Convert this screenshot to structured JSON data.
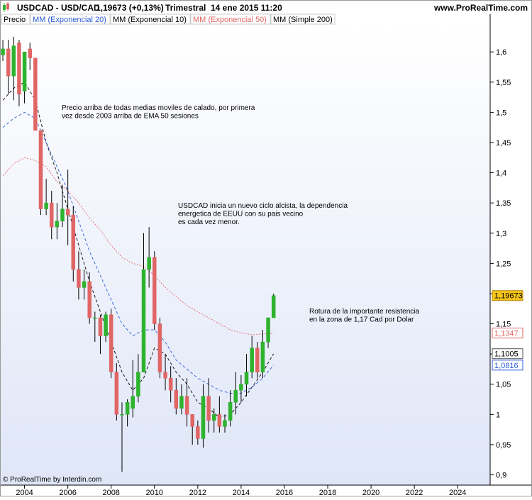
{
  "header": {
    "symbol": "USDCAD - USD/CAD",
    "quote": "1,19673 (+0,13%)",
    "period": "Trimestral",
    "datetime": "14 ene 2015 11:20",
    "site": "www.ProRealTime.com"
  },
  "legend": [
    {
      "label": "Precio",
      "color": "#000000"
    },
    {
      "label": "MM (Exponencial 20)",
      "color": "#2a5bd7"
    },
    {
      "label": "MM (Exponencial 10)",
      "color": "#000000"
    },
    {
      "label": "MM (Exponencial 50)",
      "color": "#e06666"
    },
    {
      "label": "MM (Simple 200)",
      "color": "#000000"
    }
  ],
  "footer": "© ProRealTime by Interdin.com",
  "annotations": [
    {
      "lines": [
        "Precio arriba de todas medias moviles de calado, por primera",
        "vez desde 2003 arriba de EMA 50 sesiones"
      ]
    },
    {
      "lines": [
        "USDCAD inicia un nuevo ciclo alcista, la dependencia",
        "energetica de EEUU con su pais vecino",
        "es cada vez menor."
      ]
    },
    {
      "lines": [
        "Rotura de la importante resistencia",
        " en la zona de 1,17 Cad por Dolar"
      ]
    }
  ],
  "price_tags": [
    {
      "text": "1,19673",
      "value": 1.19673,
      "bg": "#f5c518",
      "fg": "#000000",
      "border": "#b8860b"
    },
    {
      "text": "1,1347",
      "value": 1.1347,
      "bg": "#ffffff",
      "fg": "#e06666",
      "border": "#e06666"
    },
    {
      "text": "1,1005",
      "value": 1.1005,
      "bg": "#ffffff",
      "fg": "#000000",
      "border": "#555555"
    },
    {
      "text": "1,0816",
      "value": 1.0816,
      "bg": "#ffffff",
      "fg": "#2a5bd7",
      "border": "#2a5bd7"
    }
  ],
  "colors": {
    "up": "#2db32d",
    "down": "#e06666",
    "background_top": "#ffffff",
    "background_bottom": "#dfe6f7"
  },
  "chart_data": {
    "type": "candlestick",
    "timeframe": "quarterly",
    "x_ticks": [
      "2004",
      "2006",
      "2008",
      "2010",
      "2012",
      "2014",
      "2016",
      "2018",
      "2020",
      "2022",
      "2024"
    ],
    "y_ticks": [
      "0,9",
      "0,95",
      "1",
      "1,05",
      "1,1",
      "1,15",
      "1,2",
      "1,25",
      "1,3",
      "1,35",
      "1,4",
      "1,45",
      "1,5",
      "1,55",
      "1,6"
    ],
    "y_tick_values": [
      0.9,
      0.95,
      1.0,
      1.05,
      1.1,
      1.15,
      1.2,
      1.25,
      1.3,
      1.35,
      1.4,
      1.45,
      1.5,
      1.55,
      1.6
    ],
    "xlim": [
      2002.9,
      2025.5
    ],
    "ylim": [
      0.883,
      1.646
    ],
    "candles": [
      {
        "t": 2003.0,
        "o": 1.595,
        "h": 1.62,
        "l": 1.585,
        "c": 1.605
      },
      {
        "t": 2003.25,
        "o": 1.605,
        "h": 1.62,
        "l": 1.53,
        "c": 1.56
      },
      {
        "t": 2003.5,
        "o": 1.56,
        "h": 1.625,
        "l": 1.52,
        "c": 1.61
      },
      {
        "t": 2003.75,
        "o": 1.615,
        "h": 1.62,
        "l": 1.51,
        "c": 1.53
      },
      {
        "t": 2004.0,
        "o": 1.535,
        "h": 1.6,
        "l": 1.515,
        "c": 1.6
      },
      {
        "t": 2004.25,
        "o": 1.605,
        "h": 1.615,
        "l": 1.57,
        "c": 1.59
      },
      {
        "t": 2004.5,
        "o": 1.59,
        "h": 1.59,
        "l": 1.47,
        "c": 1.47
      },
      {
        "t": 2004.75,
        "o": 1.47,
        "h": 1.47,
        "l": 1.33,
        "c": 1.34
      },
      {
        "t": 2005.0,
        "o": 1.34,
        "h": 1.39,
        "l": 1.33,
        "c": 1.35
      },
      {
        "t": 2005.25,
        "o": 1.35,
        "h": 1.37,
        "l": 1.29,
        "c": 1.31
      },
      {
        "t": 2005.5,
        "o": 1.31,
        "h": 1.35,
        "l": 1.29,
        "c": 1.32
      },
      {
        "t": 2005.75,
        "o": 1.32,
        "h": 1.38,
        "l": 1.31,
        "c": 1.34
      },
      {
        "t": 2006.0,
        "o": 1.34,
        "h": 1.405,
        "l": 1.28,
        "c": 1.33
      },
      {
        "t": 2006.25,
        "o": 1.33,
        "h": 1.345,
        "l": 1.22,
        "c": 1.24
      },
      {
        "t": 2006.5,
        "o": 1.24,
        "h": 1.27,
        "l": 1.19,
        "c": 1.21
      },
      {
        "t": 2006.75,
        "o": 1.21,
        "h": 1.24,
        "l": 1.19,
        "c": 1.22
      },
      {
        "t": 2007.0,
        "o": 1.22,
        "h": 1.235,
        "l": 1.15,
        "c": 1.16
      },
      {
        "t": 2007.25,
        "o": 1.16,
        "h": 1.17,
        "l": 1.12,
        "c": 1.16
      },
      {
        "t": 2007.5,
        "o": 1.16,
        "h": 1.165,
        "l": 1.1,
        "c": 1.13
      },
      {
        "t": 2007.75,
        "o": 1.13,
        "h": 1.17,
        "l": 1.12,
        "c": 1.165
      },
      {
        "t": 2008.0,
        "o": 1.165,
        "h": 1.175,
        "l": 1.06,
        "c": 1.07
      },
      {
        "t": 2008.25,
        "o": 1.07,
        "h": 1.085,
        "l": 0.99,
        "c": 1.0
      },
      {
        "t": 2008.5,
        "o": 1.0,
        "h": 1.02,
        "l": 0.905,
        "c": 1.0
      },
      {
        "t": 2008.75,
        "o": 1.0,
        "h": 1.025,
        "l": 0.98,
        "c": 1.02
      },
      {
        "t": 2009.0,
        "o": 1.01,
        "h": 1.09,
        "l": 0.995,
        "c": 1.03
      },
      {
        "t": 2009.25,
        "o": 1.03,
        "h": 1.1,
        "l": 1.02,
        "c": 1.07
      },
      {
        "t": 2009.5,
        "o": 1.07,
        "h": 1.3,
        "l": 1.07,
        "c": 1.24
      },
      {
        "t": 2009.75,
        "o": 1.24,
        "h": 1.31,
        "l": 1.21,
        "c": 1.26
      },
      {
        "t": 2010.0,
        "o": 1.26,
        "h": 1.27,
        "l": 1.14,
        "c": 1.15
      },
      {
        "t": 2010.25,
        "o": 1.15,
        "h": 1.16,
        "l": 1.06,
        "c": 1.07
      },
      {
        "t": 2010.5,
        "o": 1.07,
        "h": 1.1,
        "l": 1.04,
        "c": 1.06
      },
      {
        "t": 2010.75,
        "o": 1.06,
        "h": 1.08,
        "l": 1.02,
        "c": 1.04
      },
      {
        "t": 2011.0,
        "o": 1.04,
        "h": 1.06,
        "l": 1.0,
        "c": 1.01
      },
      {
        "t": 2011.25,
        "o": 1.01,
        "h": 1.05,
        "l": 1.0,
        "c": 1.03
      },
      {
        "t": 2011.5,
        "o": 1.03,
        "h": 1.06,
        "l": 0.98,
        "c": 1.0
      },
      {
        "t": 2011.75,
        "o": 1.0,
        "h": 1.0,
        "l": 0.95,
        "c": 0.98
      },
      {
        "t": 2012.0,
        "o": 0.98,
        "h": 0.99,
        "l": 0.95,
        "c": 0.96
      },
      {
        "t": 2012.25,
        "o": 0.96,
        "h": 1.05,
        "l": 0.945,
        "c": 1.03
      },
      {
        "t": 2012.5,
        "o": 1.03,
        "h": 1.06,
        "l": 0.97,
        "c": 0.99
      },
      {
        "t": 2012.75,
        "o": 0.99,
        "h": 1.01,
        "l": 0.97,
        "c": 1.0
      },
      {
        "t": 2013.0,
        "o": 1.0,
        "h": 1.03,
        "l": 0.97,
        "c": 0.98
      },
      {
        "t": 2013.25,
        "o": 0.98,
        "h": 1.0,
        "l": 0.97,
        "c": 0.99
      },
      {
        "t": 2013.5,
        "o": 0.99,
        "h": 1.04,
        "l": 0.98,
        "c": 1.02
      },
      {
        "t": 2013.75,
        "o": 1.02,
        "h": 1.07,
        "l": 1.0,
        "c": 1.04
      },
      {
        "t": 2014.0,
        "o": 1.04,
        "h": 1.065,
        "l": 1.02,
        "c": 1.05
      },
      {
        "t": 2014.25,
        "o": 1.05,
        "h": 1.1,
        "l": 1.03,
        "c": 1.07
      },
      {
        "t": 2014.5,
        "o": 1.07,
        "h": 1.13,
        "l": 1.06,
        "c": 1.11
      },
      {
        "t": 2014.75,
        "o": 1.11,
        "h": 1.12,
        "l": 1.06,
        "c": 1.07
      },
      {
        "t": 2015.0,
        "o": 1.07,
        "h": 1.14,
        "l": 1.06,
        "c": 1.12
      },
      {
        "t": 2015.25,
        "o": 1.12,
        "h": 1.16,
        "l": 1.11,
        "c": 1.16
      },
      {
        "t": 2015.5,
        "o": 1.16,
        "h": 1.2,
        "l": 1.16,
        "c": 1.19673
      }
    ],
    "series": [
      {
        "name": "MM (Exponencial 10)",
        "color": "#000000",
        "style": "dash",
        "points": [
          [
            2003.0,
            1.52
          ],
          [
            2003.5,
            1.54
          ],
          [
            2004.0,
            1.55
          ],
          [
            2004.5,
            1.52
          ],
          [
            2005.0,
            1.45
          ],
          [
            2005.5,
            1.4
          ],
          [
            2006.0,
            1.34
          ],
          [
            2006.5,
            1.28
          ],
          [
            2007.0,
            1.22
          ],
          [
            2007.5,
            1.17
          ],
          [
            2008.0,
            1.12
          ],
          [
            2008.5,
            1.07
          ],
          [
            2009.0,
            1.04
          ],
          [
            2009.5,
            1.06
          ],
          [
            2010.0,
            1.11
          ],
          [
            2010.5,
            1.1
          ],
          [
            2011.0,
            1.07
          ],
          [
            2011.5,
            1.05
          ],
          [
            2012.0,
            1.02
          ],
          [
            2012.5,
            1.01
          ],
          [
            2013.0,
            0.995
          ],
          [
            2013.5,
            1.0
          ],
          [
            2014.0,
            1.02
          ],
          [
            2014.5,
            1.045
          ],
          [
            2015.0,
            1.07
          ],
          [
            2015.5,
            1.1005
          ]
        ]
      },
      {
        "name": "MM (Exponencial 20)",
        "color": "#2a5bd7",
        "style": "dash",
        "points": [
          [
            2003.0,
            1.475
          ],
          [
            2003.5,
            1.49
          ],
          [
            2004.0,
            1.5
          ],
          [
            2004.5,
            1.49
          ],
          [
            2005.0,
            1.45
          ],
          [
            2005.5,
            1.41
          ],
          [
            2006.0,
            1.37
          ],
          [
            2006.5,
            1.32
          ],
          [
            2007.0,
            1.27
          ],
          [
            2007.5,
            1.23
          ],
          [
            2008.0,
            1.19
          ],
          [
            2008.5,
            1.15
          ],
          [
            2009.0,
            1.13
          ],
          [
            2009.5,
            1.14
          ],
          [
            2010.0,
            1.14
          ],
          [
            2010.5,
            1.12
          ],
          [
            2011.0,
            1.09
          ],
          [
            2011.5,
            1.075
          ],
          [
            2012.0,
            1.06
          ],
          [
            2012.5,
            1.05
          ],
          [
            2013.0,
            1.04
          ],
          [
            2013.5,
            1.035
          ],
          [
            2014.0,
            1.035
          ],
          [
            2014.5,
            1.045
          ],
          [
            2015.0,
            1.06
          ],
          [
            2015.5,
            1.0816
          ]
        ]
      },
      {
        "name": "MM (Exponencial 50)",
        "color": "#e06666",
        "style": "dot",
        "points": [
          [
            2003.0,
            1.395
          ],
          [
            2003.5,
            1.415
          ],
          [
            2004.0,
            1.425
          ],
          [
            2004.5,
            1.42
          ],
          [
            2005.0,
            1.41
          ],
          [
            2005.5,
            1.385
          ],
          [
            2006.0,
            1.37
          ],
          [
            2006.5,
            1.35
          ],
          [
            2007.0,
            1.325
          ],
          [
            2007.5,
            1.305
          ],
          [
            2008.0,
            1.28
          ],
          [
            2008.5,
            1.26
          ],
          [
            2009.0,
            1.25
          ],
          [
            2009.5,
            1.245
          ],
          [
            2010.0,
            1.23
          ],
          [
            2010.5,
            1.21
          ],
          [
            2011.0,
            1.195
          ],
          [
            2011.5,
            1.18
          ],
          [
            2012.0,
            1.17
          ],
          [
            2012.5,
            1.16
          ],
          [
            2013.0,
            1.15
          ],
          [
            2013.5,
            1.14
          ],
          [
            2014.0,
            1.135
          ],
          [
            2014.5,
            1.132
          ],
          [
            2015.0,
            1.133
          ],
          [
            2015.5,
            1.1347
          ]
        ]
      }
    ]
  }
}
